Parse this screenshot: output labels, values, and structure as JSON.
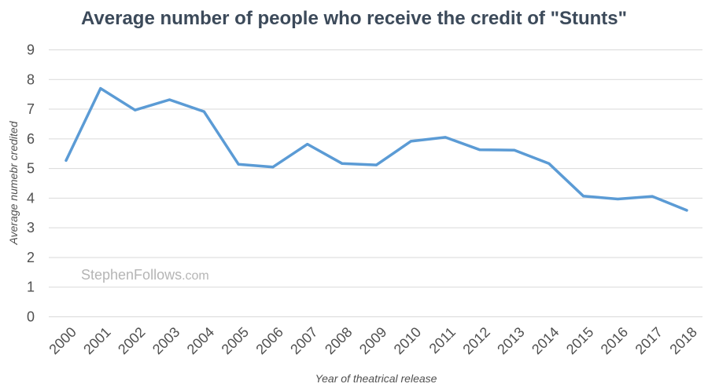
{
  "chart_data": {
    "type": "line",
    "title": "Average number of people who receive the credit of \"Stunts\"",
    "xlabel": "Year of theatrical release",
    "ylabel": "Average numebr credited",
    "watermark": "StephenFollows",
    "watermark_suffix": ".com",
    "categories": [
      "2000",
      "2001",
      "2002",
      "2003",
      "2004",
      "2005",
      "2006",
      "2007",
      "2008",
      "2009",
      "2010",
      "2011",
      "2012",
      "2013",
      "2014",
      "2015",
      "2016",
      "2017",
      "2018"
    ],
    "series": [
      {
        "values": [
          5.27,
          7.7,
          6.97,
          7.32,
          6.92,
          5.14,
          5.05,
          5.82,
          5.17,
          5.12,
          5.92,
          6.05,
          5.63,
          5.62,
          5.17,
          4.07,
          3.97,
          4.06,
          3.59
        ],
        "color": "#5b9bd5"
      }
    ],
    "ylim": [
      0,
      9
    ],
    "yticks": [
      0,
      1,
      2,
      3,
      4,
      5,
      6,
      7,
      8,
      9
    ],
    "grid": true,
    "legend": "none"
  }
}
